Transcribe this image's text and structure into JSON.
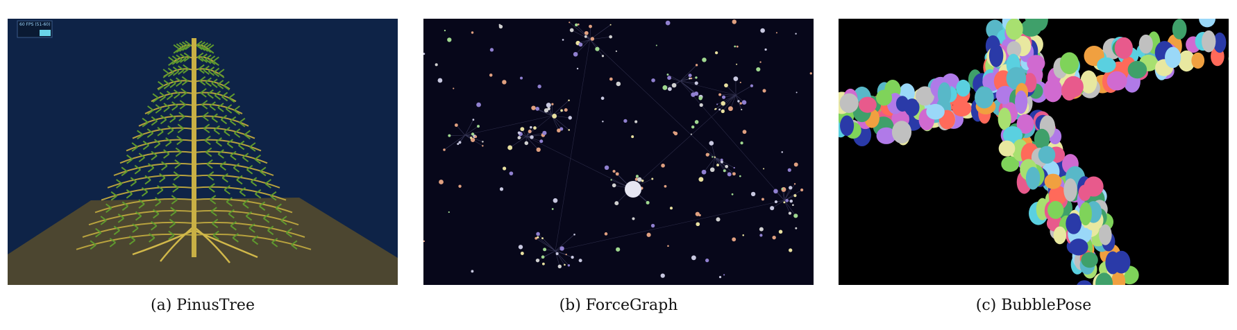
{
  "figures": [
    {
      "id": "a",
      "caption": "(a)  PinusTree",
      "fps_label": "60 FPS (51-60)"
    },
    {
      "id": "b",
      "caption": "(b)  ForceGraph"
    },
    {
      "id": "c",
      "caption": "(c)  BubblePose"
    }
  ],
  "colors": {
    "sky": "#0e2347",
    "ground": "#4c4630",
    "trunk": "#c9b045",
    "graph_bg": "#07071a",
    "bubble_bg": "#000000"
  }
}
